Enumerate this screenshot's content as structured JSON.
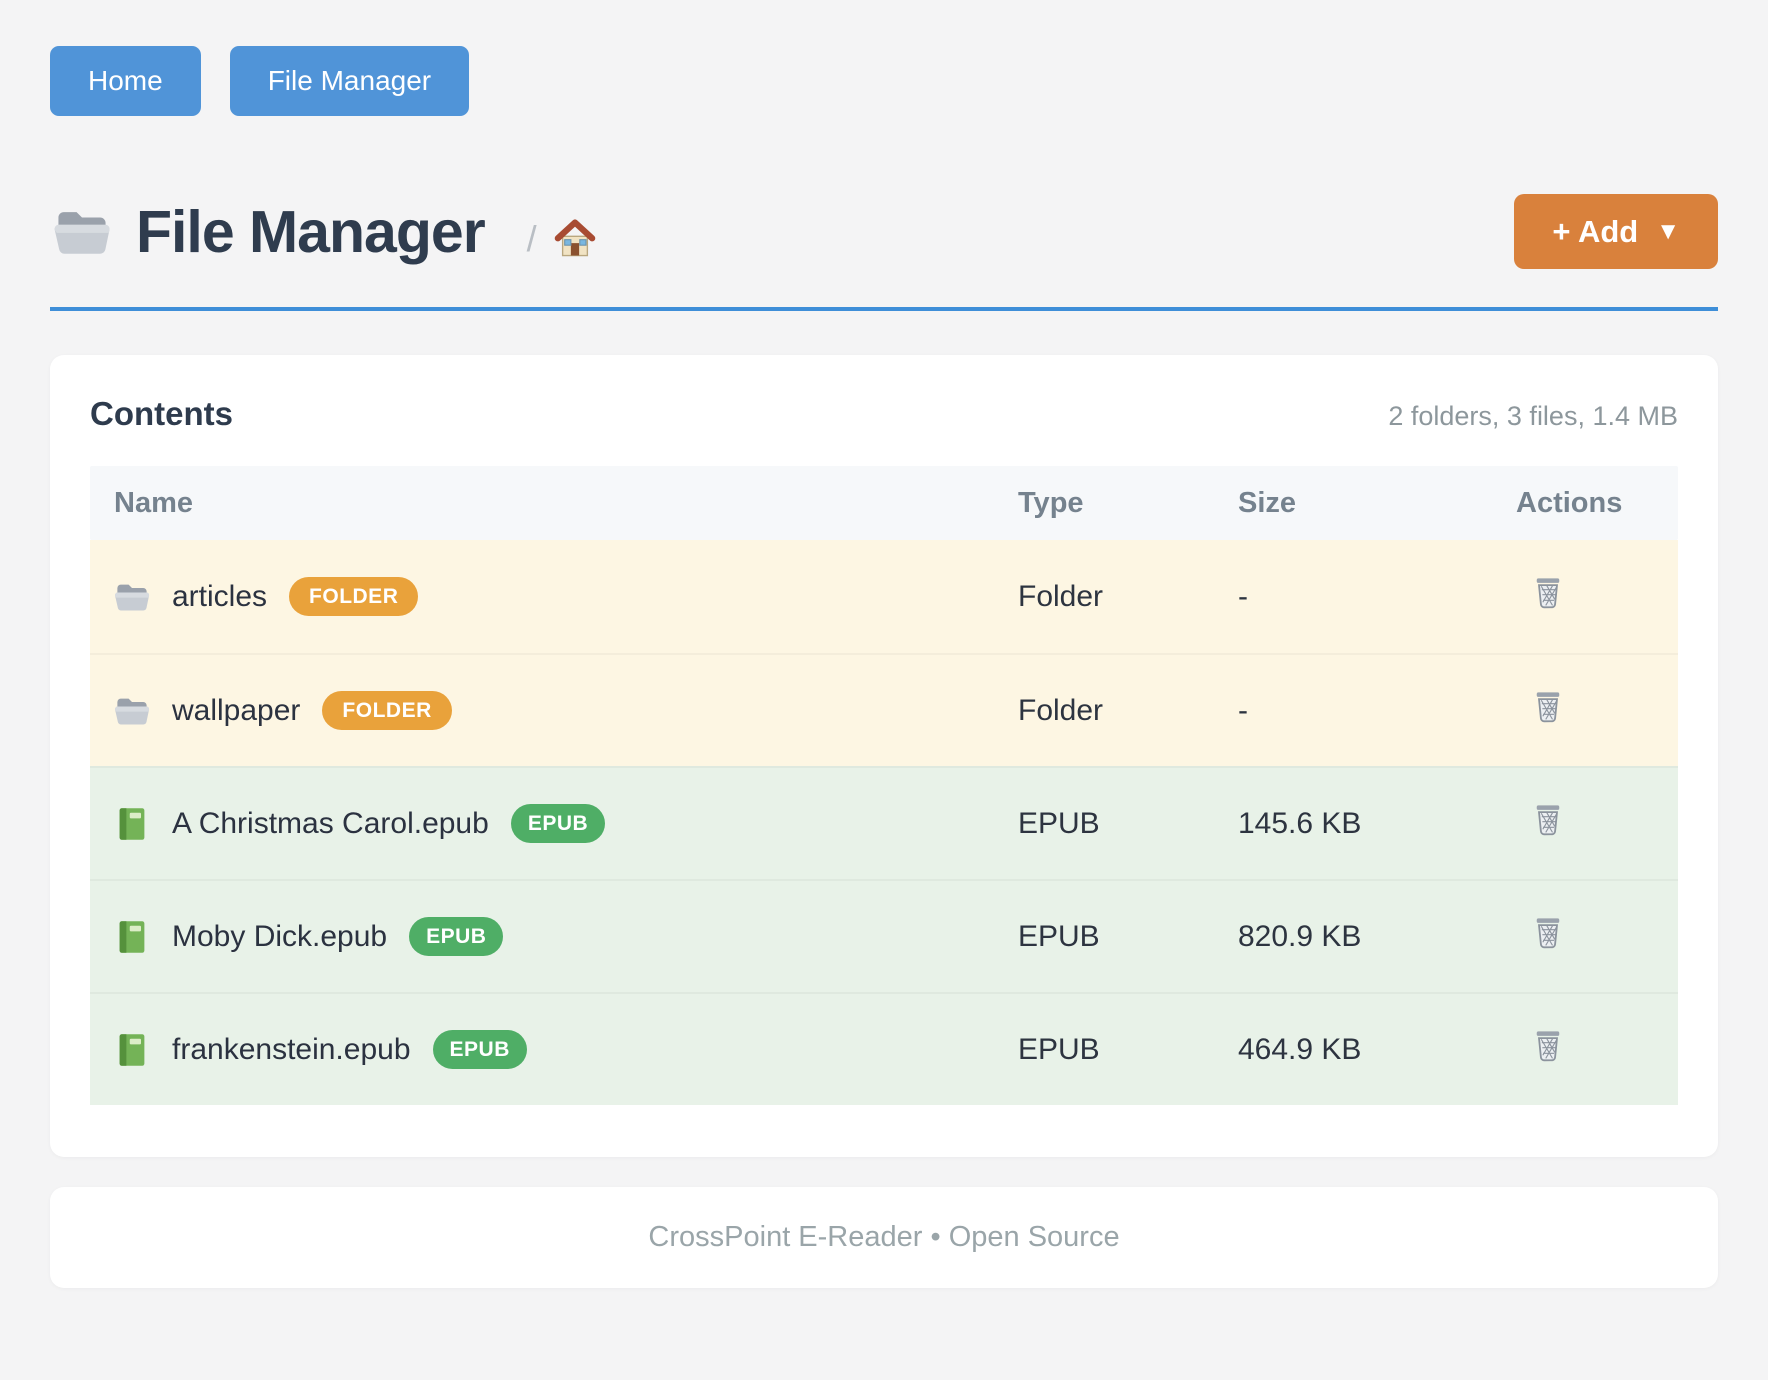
{
  "nav": {
    "home_label": "Home",
    "file_manager_label": "File Manager"
  },
  "header": {
    "folder_icon": "folder-icon",
    "title": "File Manager",
    "breadcrumb_separator": "/",
    "home_icon": "house-icon",
    "add_button": {
      "label": "+ Add",
      "caret": "▼"
    }
  },
  "contents": {
    "title": "Contents",
    "summary": "2 folders, 3 files, 1.4 MB",
    "columns": [
      "Name",
      "Type",
      "Size",
      "Actions"
    ],
    "rows": [
      {
        "icon": "folder-icon",
        "name": "articles",
        "badge": "FOLDER",
        "kind": "folder",
        "type": "Folder",
        "size": "-",
        "action_icon": "trash-icon"
      },
      {
        "icon": "folder-icon",
        "name": "wallpaper",
        "badge": "FOLDER",
        "kind": "folder",
        "type": "Folder",
        "size": "-",
        "action_icon": "trash-icon"
      },
      {
        "icon": "green-book-icon",
        "name": "A Christmas Carol.epub",
        "badge": "EPUB",
        "kind": "epub",
        "type": "EPUB",
        "size": "145.6 KB",
        "action_icon": "trash-icon"
      },
      {
        "icon": "green-book-icon",
        "name": "Moby Dick.epub",
        "badge": "EPUB",
        "kind": "epub",
        "type": "EPUB",
        "size": "820.9 KB",
        "action_icon": "trash-icon"
      },
      {
        "icon": "green-book-icon",
        "name": "frankenstein.epub",
        "badge": "EPUB",
        "kind": "epub",
        "type": "EPUB",
        "size": "464.9 KB",
        "action_icon": "trash-icon"
      }
    ]
  },
  "footer": {
    "text": "CrossPoint E-Reader • Open Source"
  },
  "colors": {
    "nav_button_blue": "#5094d8",
    "add_button_orange": "#d9813c",
    "divider_blue": "#3e8ed8",
    "folder_badge_orange": "#e9a23b",
    "epub_badge_green": "#4fae66",
    "folder_row_bg": "#fdf6e3",
    "epub_row_bg": "#e8f2e8",
    "title_text": "#2f3c4e"
  }
}
